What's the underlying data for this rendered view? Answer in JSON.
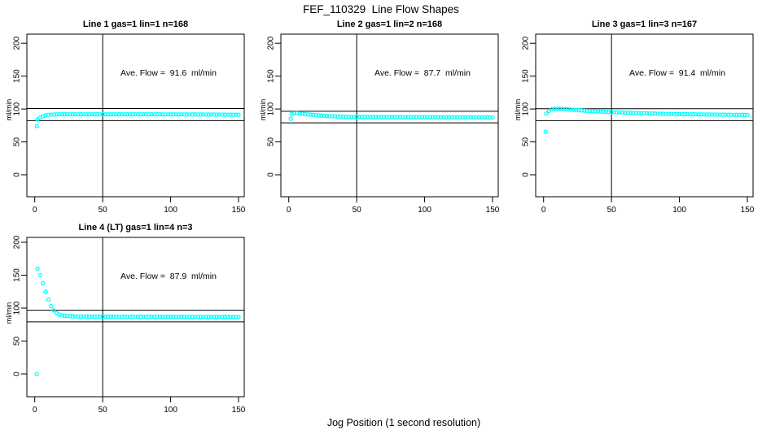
{
  "page_title": "FEF_110329  Line Flow Shapes",
  "x_axis_label": "Jog Position (1 second resolution)",
  "style": {
    "marker_color": "#00FFFF",
    "line_color": "#000000",
    "background": "#FFFFFF"
  },
  "axes": {
    "x_ticks": [
      0,
      50,
      100,
      150
    ],
    "y_ticks": [
      0,
      50,
      100,
      150,
      200
    ],
    "y_label": "ml/min",
    "xlim": [
      -6,
      154
    ],
    "ylim": [
      -33,
      214
    ],
    "grid": false
  },
  "chart_data": [
    {
      "type": "scatter",
      "title": "Line 1 gas=1 lin=1 n=168",
      "ave_label": "Ave. Flow =  91.6  ml/min",
      "ave_flow_ml_min": 91.6,
      "n": 168,
      "ref_line_x": 50,
      "ref_lines_y": [
        100.8,
        82.4
      ],
      "outlier_point": [
        1.5,
        74
      ],
      "series": {
        "x_start": 2,
        "x_step": 2,
        "y": [
          84,
          87,
          89,
          90.3,
          91,
          91.4,
          91.7,
          91.9,
          92,
          92.1,
          91.9,
          92,
          92.1,
          92,
          91.9,
          92.1,
          92,
          91.9,
          92,
          92.1,
          91.9,
          92,
          92,
          91.9,
          92.1,
          92,
          91.9,
          92,
          92.1,
          91.9,
          92,
          92.1,
          91.9,
          92,
          92,
          91.9,
          92.1,
          92,
          91.9,
          92,
          92.1,
          91.9,
          92,
          91.9,
          92,
          92,
          91.9,
          91.8,
          91.9,
          92,
          91.8,
          91.9,
          91.8,
          91.9,
          91.8,
          91.7,
          91.8,
          91.9,
          91.7,
          91.8,
          91.7,
          91.8,
          91.6,
          91.7,
          91.6,
          91.7,
          91.5,
          91.6,
          91.5,
          91.4,
          91.5,
          91.4,
          91.3,
          91.4,
          91.3
        ]
      }
    },
    {
      "type": "scatter",
      "title": "Line 2 gas=1 lin=2 n=168",
      "ave_label": "Ave. Flow =  87.7  ml/min",
      "ave_flow_ml_min": 87.7,
      "n": 168,
      "ref_line_x": 50,
      "ref_lines_y": [
        96.5,
        78.9
      ],
      "outlier_point": [
        1.5,
        85
      ],
      "series": {
        "x_start": 2,
        "x_step": 2,
        "y": [
          92,
          93.4,
          93.6,
          93.2,
          92.7,
          92.2,
          91.8,
          91.4,
          91,
          90.6,
          90.3,
          90,
          89.7,
          89.4,
          89.2,
          89,
          88.8,
          88.6,
          88.5,
          88.4,
          88.3,
          88.2,
          88.1,
          88.1,
          88,
          88,
          87.9,
          87.9,
          87.9,
          87.8,
          87.8,
          87.8,
          87.8,
          87.7,
          87.8,
          87.7,
          87.7,
          87.7,
          87.7,
          87.6,
          87.7,
          87.6,
          87.6,
          87.7,
          87.6,
          87.6,
          87.5,
          87.6,
          87.5,
          87.6,
          87.5,
          87.5,
          87.5,
          87.4,
          87.5,
          87.4,
          87.5,
          87.4,
          87.4,
          87.4,
          87.3,
          87.4,
          87.3,
          87.3,
          87.4,
          87.3,
          87.3,
          87.2,
          87.3,
          87.2,
          87.3,
          87.2,
          87.2,
          87.2,
          87.1
        ]
      }
    },
    {
      "type": "scatter",
      "title": "Line 3 gas=1 lin=3 n=167",
      "ave_label": "Ave. Flow =  91.4  ml/min",
      "ave_flow_ml_min": 91.4,
      "n": 167,
      "ref_line_x": 50,
      "ref_lines_y": [
        100.5,
        82.3
      ],
      "outlier_point": [
        1.5,
        65.5
      ],
      "series": {
        "x_start": 2,
        "x_step": 2,
        "y": [
          93,
          97,
          99.5,
          100.3,
          100.4,
          100.2,
          100,
          99.7,
          99.4,
          99,
          98.7,
          98.4,
          98.1,
          97.8,
          97.5,
          97.2,
          97,
          96.7,
          96.5,
          96.3,
          96.1,
          95.9,
          95.7,
          95.5,
          95.3,
          95.2,
          95,
          94.8,
          94.7,
          94.5,
          94.4,
          94.2,
          94.1,
          94,
          93.8,
          93.7,
          93.6,
          93.5,
          93.4,
          93.2,
          93.1,
          93,
          92.9,
          92.8,
          92.7,
          92.7,
          92.6,
          92.5,
          92.4,
          92.3,
          92.3,
          92.2,
          92.1,
          92.1,
          92,
          91.9,
          91.9,
          91.8,
          91.8,
          91.7,
          91.7,
          91.6,
          91.6,
          91.5,
          91.5,
          91.4,
          91.4,
          91.3,
          91.3,
          91.2,
          91.2,
          91.1,
          91.1,
          91,
          91
        ]
      }
    },
    {
      "type": "scatter",
      "title": "Line 4 (LT) gas=1 lin=4 n=3",
      "ave_label": "Ave. Flow =  87.9  ml/min",
      "ave_flow_ml_min": 87.9,
      "n": 3,
      "ref_line_x": 50,
      "ref_lines_y": [
        96.7,
        79.1
      ],
      "outlier_point": [
        1.5,
        0
      ],
      "series": {
        "x_start": 2,
        "x_step": 2,
        "y": [
          160,
          150,
          138,
          125,
          113,
          103,
          96.5,
          92.5,
          90.3,
          89,
          88.3,
          87.9,
          87.6,
          87.4,
          87.3,
          87.2,
          87.2,
          87.1,
          87.2,
          87.1,
          87.1,
          87.1,
          87,
          87.1,
          87,
          87,
          87.1,
          87,
          87,
          86.9,
          87,
          86.9,
          87,
          86.9,
          86.9,
          87,
          86.9,
          86.9,
          86.8,
          86.9,
          86.8,
          86.9,
          86.8,
          86.8,
          86.9,
          86.8,
          86.8,
          86.7,
          86.8,
          86.7,
          86.8,
          86.7,
          86.7,
          86.8,
          86.7,
          86.7,
          86.6,
          86.7,
          86.6,
          86.7,
          86.6,
          86.6,
          86.7,
          86.6,
          86.6,
          86.5,
          86.6,
          86.5,
          86.6,
          86.5,
          86.5,
          86.4,
          86.5,
          86.4,
          86.4
        ]
      }
    }
  ]
}
